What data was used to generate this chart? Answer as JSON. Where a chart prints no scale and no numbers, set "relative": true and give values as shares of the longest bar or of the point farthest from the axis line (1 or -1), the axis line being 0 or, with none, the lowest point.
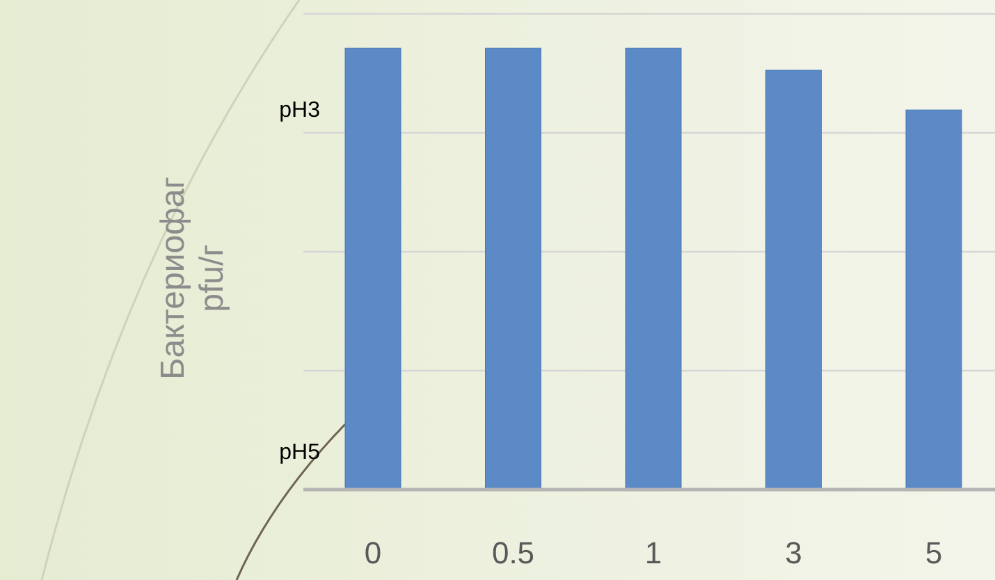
{
  "chart_data": {
    "type": "bar",
    "ylabel": "Бактериофаг\npfu/г",
    "categories": [
      "0",
      "0.5",
      "1",
      "3",
      "5"
    ],
    "values": [
      1,
      1,
      1,
      0.95,
      0.86
    ],
    "color": "#5b8ac6",
    "relative": true,
    "grid": "y",
    "annotations": [
      "pH3",
      "pH5"
    ]
  }
}
